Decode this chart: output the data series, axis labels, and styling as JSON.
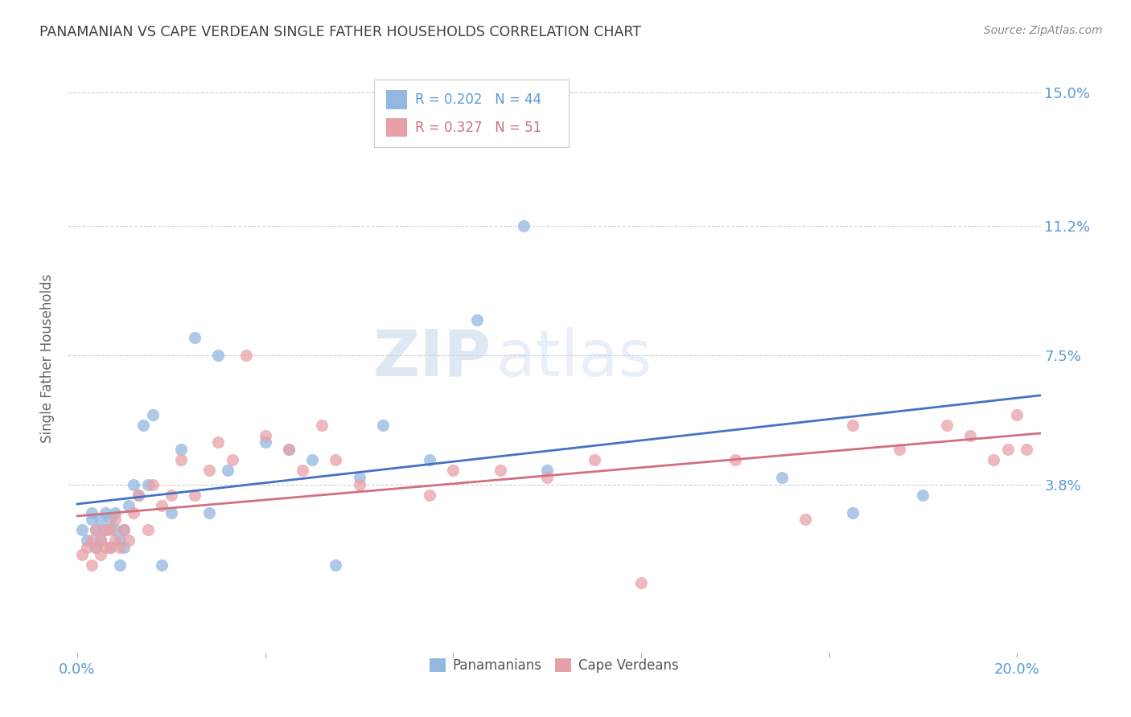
{
  "title": "PANAMANIAN VS CAPE VERDEAN SINGLE FATHER HOUSEHOLDS CORRELATION CHART",
  "source": "Source: ZipAtlas.com",
  "ylabel": "Single Father Households",
  "y_tick_labels": [
    "15.0%",
    "11.2%",
    "7.5%",
    "3.8%"
  ],
  "y_tick_values": [
    0.15,
    0.112,
    0.075,
    0.038
  ],
  "x_tick_labeled": [
    0.0,
    0.2
  ],
  "x_tick_minor": [
    0.04,
    0.08,
    0.12,
    0.16
  ],
  "xlim": [
    -0.002,
    0.205
  ],
  "ylim": [
    -0.01,
    0.158
  ],
  "legend_blue_label": "Panamanians",
  "legend_pink_label": "Cape Verdeans",
  "blue_R": "0.202",
  "blue_N": "44",
  "pink_R": "0.327",
  "pink_N": "51",
  "blue_color": "#92b8e0",
  "pink_color": "#e8a0a8",
  "blue_line_color": "#4472c4",
  "pink_line_color": "#d07080",
  "watermark_zip": "ZIP",
  "watermark_atlas": "atlas",
  "title_color": "#404040",
  "axis_label_color": "#5b9bd5",
  "source_color": "#888888",
  "grid_color": "#d0d0d0",
  "blue_scatter_x": [
    0.001,
    0.002,
    0.003,
    0.003,
    0.004,
    0.004,
    0.005,
    0.005,
    0.006,
    0.006,
    0.007,
    0.007,
    0.008,
    0.008,
    0.009,
    0.009,
    0.01,
    0.01,
    0.011,
    0.012,
    0.013,
    0.014,
    0.015,
    0.016,
    0.018,
    0.02,
    0.022,
    0.025,
    0.028,
    0.03,
    0.032,
    0.04,
    0.045,
    0.05,
    0.055,
    0.06,
    0.065,
    0.075,
    0.085,
    0.095,
    0.1,
    0.15,
    0.165,
    0.18
  ],
  "blue_scatter_y": [
    0.025,
    0.022,
    0.03,
    0.028,
    0.025,
    0.02,
    0.028,
    0.022,
    0.03,
    0.025,
    0.028,
    0.02,
    0.025,
    0.03,
    0.022,
    0.015,
    0.02,
    0.025,
    0.032,
    0.038,
    0.035,
    0.055,
    0.038,
    0.058,
    0.015,
    0.03,
    0.048,
    0.08,
    0.03,
    0.075,
    0.042,
    0.05,
    0.048,
    0.045,
    0.015,
    0.04,
    0.055,
    0.045,
    0.085,
    0.112,
    0.042,
    0.04,
    0.03,
    0.035
  ],
  "pink_scatter_x": [
    0.001,
    0.002,
    0.003,
    0.003,
    0.004,
    0.004,
    0.005,
    0.005,
    0.006,
    0.006,
    0.007,
    0.007,
    0.008,
    0.008,
    0.009,
    0.01,
    0.011,
    0.012,
    0.013,
    0.015,
    0.016,
    0.018,
    0.02,
    0.022,
    0.025,
    0.028,
    0.03,
    0.033,
    0.036,
    0.04,
    0.045,
    0.048,
    0.052,
    0.055,
    0.06,
    0.075,
    0.08,
    0.09,
    0.1,
    0.11,
    0.12,
    0.14,
    0.155,
    0.165,
    0.175,
    0.185,
    0.19,
    0.195,
    0.198,
    0.2,
    0.202
  ],
  "pink_scatter_y": [
    0.018,
    0.02,
    0.015,
    0.022,
    0.02,
    0.025,
    0.018,
    0.022,
    0.025,
    0.02,
    0.02,
    0.025,
    0.022,
    0.028,
    0.02,
    0.025,
    0.022,
    0.03,
    0.035,
    0.025,
    0.038,
    0.032,
    0.035,
    0.045,
    0.035,
    0.042,
    0.05,
    0.045,
    0.075,
    0.052,
    0.048,
    0.042,
    0.055,
    0.045,
    0.038,
    0.035,
    0.042,
    0.042,
    0.04,
    0.045,
    0.01,
    0.045,
    0.028,
    0.055,
    0.048,
    0.055,
    0.052,
    0.045,
    0.048,
    0.058,
    0.048
  ]
}
